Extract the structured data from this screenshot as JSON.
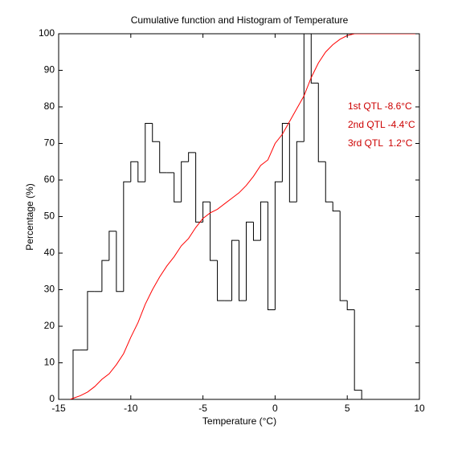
{
  "chart_data": {
    "type": "histogram",
    "title": "Cumulative function and Histogram of Temperature",
    "xlabel": "Temperature (°C)",
    "ylabel": "Percentage (%)",
    "xlim": [
      -15,
      10
    ],
    "ylim": [
      0,
      100
    ],
    "xticks": [
      -15,
      -10,
      -5,
      0,
      5,
      10
    ],
    "yticks": [
      0,
      10,
      20,
      30,
      40,
      50,
      60,
      70,
      80,
      90,
      100
    ],
    "color": "#000000",
    "bins": [
      -14,
      -13.5,
      -13,
      -12.5,
      -12,
      -11.5,
      -11,
      -10.5,
      -10,
      -9.5,
      -9,
      -8.5,
      -8,
      -7.5,
      -7,
      -6.5,
      -6,
      -5.5,
      -5,
      -4.5,
      -4,
      -3.5,
      -3,
      -2.5,
      -2,
      -1.5,
      -1,
      -0.5,
      0,
      0.5,
      1,
      1.5,
      2,
      2.5,
      3,
      3.5,
      4,
      4.5,
      5,
      5.5,
      6
    ],
    "values": [
      13.5,
      13.5,
      29.5,
      29.5,
      38,
      46,
      29.5,
      59.5,
      65,
      59.5,
      75.5,
      70.5,
      62,
      62,
      54,
      65,
      67.5,
      48.5,
      54,
      38,
      27,
      27,
      43.5,
      27,
      48.5,
      43.5,
      54,
      24.5,
      59.5,
      75.5,
      54,
      70.5,
      105,
      86.5,
      65,
      54,
      51.5,
      27,
      24.5,
      2.5
    ],
    "line": {
      "type": "line",
      "color": "#ff0000",
      "x": [
        -14.2,
        -14,
        -13.5,
        -13,
        -12.5,
        -12,
        -11.5,
        -11,
        -10.5,
        -10,
        -9.5,
        -9,
        -8.5,
        -8,
        -7.5,
        -7,
        -6.5,
        -6,
        -5.5,
        -5,
        -4.5,
        -4,
        -3.5,
        -3,
        -2.5,
        -2,
        -1.5,
        -1,
        -0.5,
        0,
        0.5,
        1,
        1.5,
        2,
        2.5,
        3,
        3.5,
        4,
        4.5,
        5,
        5.5,
        10
      ],
      "values": [
        0,
        0.3,
        1,
        2,
        3.5,
        5.5,
        7,
        9.5,
        12.5,
        17,
        21,
        26,
        30,
        33.5,
        36.5,
        39,
        42,
        44,
        47,
        49.5,
        51,
        52,
        53.5,
        55,
        56.5,
        58.5,
        61,
        64,
        65.5,
        70,
        72.5,
        76,
        79.5,
        83,
        88,
        92,
        95,
        97,
        98.5,
        99.5,
        100,
        100
      ]
    },
    "annotations": [
      "1st QTL -8.6°C",
      "2nd QTL -4.4°C",
      "3rd QTL  1.2°C"
    ],
    "annotation_color": "#cc0000"
  }
}
